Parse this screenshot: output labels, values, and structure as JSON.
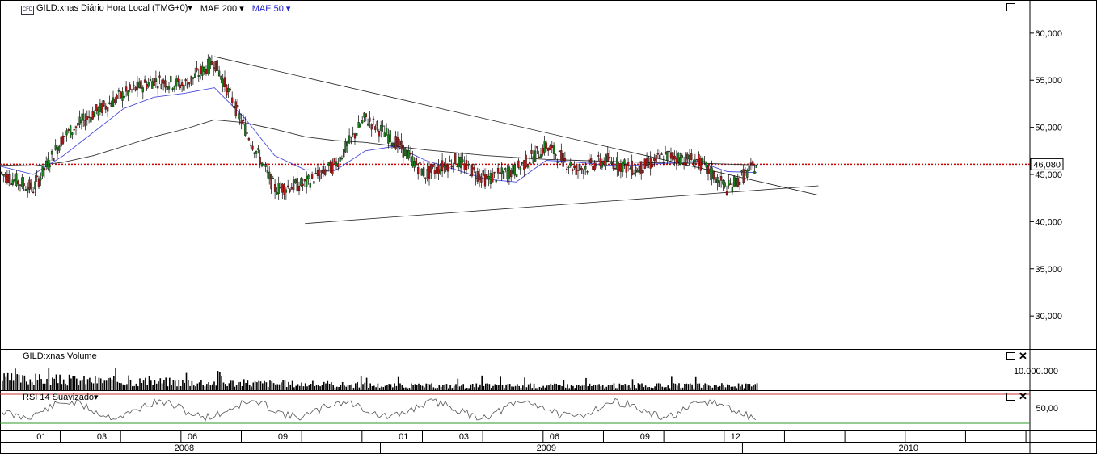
{
  "header": {
    "symbol_label": "GILD:xnas Diário Hora Local (TMG+0)▾",
    "ma200_label": "MAE 200 ▾",
    "ma50_label": "MAE 50 ▾",
    "icon": "cfd-logo-icon"
  },
  "panes": {
    "volume_title": "GILD:xnas Volume",
    "rsi_title": "RSI 14 Suavizado▾",
    "volume_tick": "10.000.000",
    "rsi_tick": "50,00"
  },
  "price_label": "46,080",
  "colors": {
    "up_candle": "#1a7a1a",
    "down_candle": "#b01818",
    "ma50": "#4b4bdc",
    "ma200": "#333333",
    "hline": "#cc0000",
    "rsi_top": "#cc3333",
    "rsi_bottom": "#2a9a2a"
  },
  "chart_data": {
    "type": "line",
    "title": "GILD:xnas Diário Hora Local (TMG+0)",
    "y_ticks": [
      "60,000",
      "55,000",
      "50,000",
      "45,000",
      "40,000",
      "35,000",
      "30,000"
    ],
    "ylim": [
      26.5,
      63.5
    ],
    "month_ticks": [
      "01",
      "03",
      "06",
      "09",
      "01",
      "03",
      "06",
      "09",
      "12"
    ],
    "year_ticks": [
      "2008",
      "2009",
      "2010"
    ],
    "current_price": 46.08,
    "price_series": {
      "name": "GILD:xnas",
      "x": [
        "2007-10",
        "2007-11",
        "2007-12",
        "2008-01",
        "2008-02",
        "2008-03",
        "2008-04",
        "2008-05",
        "2008-06",
        "2008-07",
        "2008-08",
        "2008-09",
        "2008-10",
        "2008-11",
        "2008-12",
        "2009-01",
        "2009-02",
        "2009-03",
        "2009-04",
        "2009-05",
        "2009-06",
        "2009-07",
        "2009-08",
        "2009-09",
        "2009-10",
        "2009-11",
        "2009-12",
        "2010-01"
      ],
      "values": [
        46.0,
        47.8,
        45.0,
        43.5,
        49.0,
        51.5,
        53.5,
        55.0,
        54.5,
        57.0,
        50.0,
        43.5,
        44.0,
        46.0,
        51.0,
        48.5,
        45.0,
        46.5,
        44.5,
        45.5,
        48.0,
        45.5,
        46.5,
        45.5,
        47.0,
        46.5,
        43.5,
        46.08
      ]
    },
    "moving_averages": [
      {
        "name": "MAE 200",
        "values": [
          46.0,
          46.2,
          46.0,
          45.9,
          46.3,
          47.0,
          48.0,
          49.0,
          49.8,
          50.8,
          50.5,
          49.8,
          49.0,
          48.6,
          48.4,
          48.0,
          47.6,
          47.3,
          47.0,
          46.8,
          46.6,
          46.5,
          46.4,
          46.3,
          46.2,
          46.2,
          46.1,
          46.0
        ]
      },
      {
        "name": "MAE 50",
        "values": [
          46.0,
          46.5,
          45.8,
          45.0,
          47.0,
          49.5,
          52.0,
          53.2,
          53.6,
          54.2,
          51.0,
          47.0,
          45.5,
          45.4,
          47.5,
          48.0,
          46.5,
          45.5,
          44.5,
          44.2,
          46.5,
          46.3,
          46.0,
          46.0,
          46.2,
          46.4,
          45.3,
          45.2
        ]
      }
    ],
    "trendlines": [
      {
        "name": "upper",
        "from": [
          "2008-07",
          57.5
        ],
        "to": [
          "2010-02",
          42.8
        ]
      },
      {
        "name": "lower",
        "from": [
          "2008-10",
          39.8
        ],
        "to": [
          "2010-02",
          43.8
        ]
      }
    ],
    "volume_series": {
      "name": "GILD:xnas Volume"
    },
    "rsi_series": {
      "name": "RSI 14 Suavizado"
    }
  }
}
